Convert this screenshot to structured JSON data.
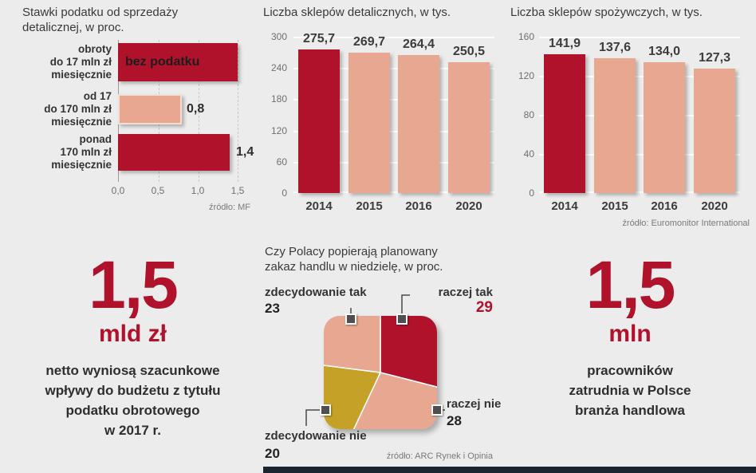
{
  "colors": {
    "red": "#b0122c",
    "salmon": "#e8a790",
    "gold": "#c5a227",
    "dark": "#3a3a3a",
    "navy": "#1b2531"
  },
  "chart_data": [
    {
      "type": "bar",
      "orientation": "horizontal",
      "title": "Stawki podatku od sprzedaży\ndetalicznej, w proc.",
      "categories": [
        "obroty\ndo 17 mln zł\nmiesięcznie",
        "od 17\ndo 170 mln zł\nmiesięcznie",
        "ponad\n170 mln zł\nmiesięcznie"
      ],
      "values": [
        null,
        0.8,
        1.4
      ],
      "value_labels": [
        "bez podatku",
        "0,8",
        "1,4"
      ],
      "bar_colors": [
        "red",
        "salmon",
        "red"
      ],
      "xlim": [
        0,
        1.5
      ],
      "x_ticks": [
        "0,0",
        "0,5",
        "1,0",
        "1,5"
      ],
      "grid": true,
      "source": "źródło: MF"
    },
    {
      "type": "bar",
      "title": "Liczba sklepów detalicznych, w tys.",
      "categories": [
        "2014",
        "2015",
        "2016",
        "2020"
      ],
      "values": [
        275.7,
        269.7,
        264.4,
        250.5
      ],
      "value_labels": [
        "275,7",
        "269,7",
        "264,4",
        "250,5"
      ],
      "bar_colors": [
        "red",
        "salmon",
        "salmon",
        "salmon"
      ],
      "ylim": [
        0,
        300
      ],
      "y_ticks": [
        "300",
        "240",
        "180",
        "120",
        "60",
        "0"
      ],
      "grid": true
    },
    {
      "type": "bar",
      "title": "Liczba sklepów spożywczych, w tys.",
      "categories": [
        "2014",
        "2015",
        "2016",
        "2020"
      ],
      "values": [
        141.9,
        137.6,
        134.0,
        127.3
      ],
      "value_labels": [
        "141,9",
        "137,6",
        "134,0",
        "127,3"
      ],
      "bar_colors": [
        "red",
        "salmon",
        "salmon",
        "salmon"
      ],
      "ylim": [
        0,
        160
      ],
      "y_ticks": [
        "160",
        "120",
        "80",
        "40",
        "0"
      ],
      "grid": true,
      "source": "źródło: Euromonitor International"
    },
    {
      "type": "pie",
      "title": "Czy Polacy popierają planowany\nzakaz handlu w niedzielę, w proc.",
      "segments": [
        {
          "label": "raczej tak",
          "value": 29,
          "value_label": "29",
          "color": "red"
        },
        {
          "label": "raczej nie",
          "value": 28,
          "value_label": "28",
          "color": "salmon"
        },
        {
          "label": "zdecydowanie nie",
          "value": 20,
          "value_label": "20",
          "color": "gold"
        },
        {
          "label": "zdecydowanie tak",
          "value": 23,
          "value_label": "23",
          "color": "salmon"
        }
      ],
      "source": "źródło: ARC Rynek i Opinia"
    }
  ],
  "highlights": [
    {
      "number": "1,5",
      "unit": "mld zł",
      "text": "netto wyniosą szacunkowe\nwpływy do budżetu z tytułu\npodatku obrotowego\nw 2017 r."
    },
    {
      "number": "1,5",
      "unit": "mln",
      "text": "pracowników\nzatrudnia w Polsce\nbranża handlowa"
    }
  ]
}
